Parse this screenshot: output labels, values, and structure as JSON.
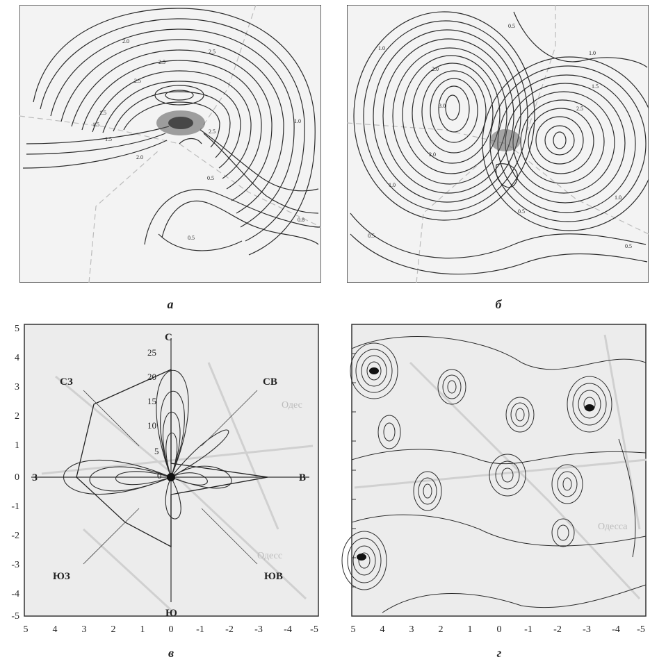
{
  "panels": [
    {
      "id": "a",
      "caption": "а",
      "contour_labels": [
        "2.0",
        "2.5",
        "2.5",
        "2.5",
        "1.5",
        "1.5",
        "2.5",
        "2.0",
        "1.5",
        "1.0",
        "0.5",
        "0.8",
        "0.5"
      ]
    },
    {
      "id": "b",
      "caption": "б",
      "contour_labels": [
        "1.0",
        "2.0",
        "3.0",
        "2.0",
        "1.0",
        "0.5",
        "0.5",
        "1.0",
        "1.5",
        "2.5",
        "1.0",
        "0.5",
        "0.5"
      ]
    },
    {
      "id": "c",
      "caption": "в",
      "x_ticks": [
        "5",
        "4",
        "3",
        "2",
        "1",
        "0",
        "-1",
        "-2",
        "-3",
        "-4",
        "-5"
      ],
      "y_ticks": [
        "5",
        "4",
        "3",
        "2",
        "1",
        "0",
        "-1",
        "-2",
        "-3",
        "-4",
        "-5"
      ],
      "radial_ticks": [
        "25",
        "20",
        "15",
        "10",
        "5",
        "0"
      ],
      "directions": {
        "n": "С",
        "s": "Ю",
        "e": "В",
        "w": "З",
        "ne": "СВ",
        "nw": "СЗ",
        "se": "ЮВ",
        "sw": "ЮЗ"
      },
      "map_text": [
        "Одес",
        "Одесс"
      ]
    },
    {
      "id": "d",
      "caption": "г",
      "x_ticks": [
        "5",
        "4",
        "3",
        "2",
        "1",
        "0",
        "-1",
        "-2",
        "-3",
        "-4",
        "-5"
      ],
      "map_text": [
        "Одесса"
      ]
    }
  ]
}
